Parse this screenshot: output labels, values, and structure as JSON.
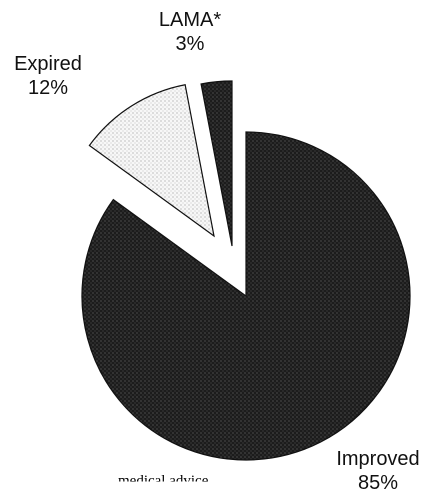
{
  "chart_data": {
    "type": "pie",
    "title": "",
    "exploded": true,
    "slices": [
      {
        "label": "Improved",
        "value": 85,
        "display": "85%",
        "pattern": "dark-dotted",
        "color": "#1f1f1f"
      },
      {
        "label": "Expired",
        "value": 12,
        "display": "12%",
        "pattern": "light-dotted",
        "color": "#f2f2f2"
      },
      {
        "label": "LAMA*",
        "value": 3,
        "display": "3%",
        "pattern": "dark-dotted",
        "color": "#1f1f1f"
      }
    ]
  },
  "footer_fragment": "medical advice"
}
